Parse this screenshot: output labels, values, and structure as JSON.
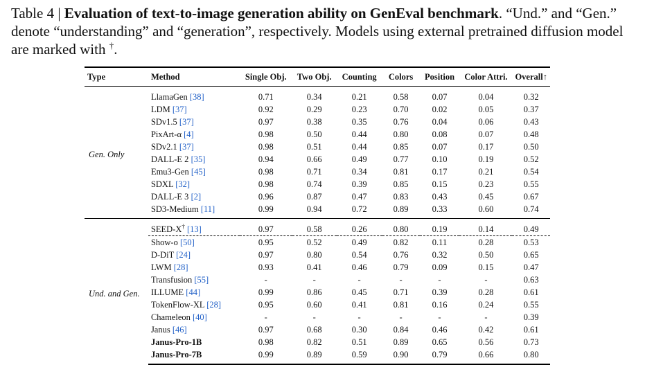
{
  "caption": {
    "label": "Table 4 | ",
    "title": "Evaluation of text-to-image generation ability on GenEval benchmark",
    "rest": ". “Und.” and “Gen.” denote “understanding” and “generation”, respectively. Models using external pretrained diffusion model are marked with ",
    "dagger": "†",
    "end": "."
  },
  "table": {
    "headers": {
      "type": "Type",
      "method": "Method",
      "single": "Single Obj.",
      "two": "Two Obj.",
      "counting": "Counting",
      "colors": "Colors",
      "position": "Position",
      "attri": "Color Attri.",
      "overall": "Overall↑"
    },
    "groups": [
      {
        "type": "Gen. Only",
        "rows": [
          {
            "method": "LlamaGen",
            "ref": "[38]",
            "v": [
              "0.71",
              "0.34",
              "0.21",
              "0.58",
              "0.07",
              "0.04",
              "0.32"
            ]
          },
          {
            "method": "LDM",
            "ref": "[37]",
            "v": [
              "0.92",
              "0.29",
              "0.23",
              "0.70",
              "0.02",
              "0.05",
              "0.37"
            ]
          },
          {
            "method": "SDv1.5",
            "ref": "[37]",
            "v": [
              "0.97",
              "0.38",
              "0.35",
              "0.76",
              "0.04",
              "0.06",
              "0.43"
            ]
          },
          {
            "method": "PixArt-α",
            "ref": "[4]",
            "v": [
              "0.98",
              "0.50",
              "0.44",
              "0.80",
              "0.08",
              "0.07",
              "0.48"
            ]
          },
          {
            "method": "SDv2.1",
            "ref": "[37]",
            "v": [
              "0.98",
              "0.51",
              "0.44",
              "0.85",
              "0.07",
              "0.17",
              "0.50"
            ]
          },
          {
            "method": "DALL-E 2",
            "ref": "[35]",
            "v": [
              "0.94",
              "0.66",
              "0.49",
              "0.77",
              "0.10",
              "0.19",
              "0.52"
            ]
          },
          {
            "method": "Emu3-Gen",
            "ref": "[45]",
            "v": [
              "0.98",
              "0.71",
              "0.34",
              "0.81",
              "0.17",
              "0.21",
              "0.54"
            ]
          },
          {
            "method": "SDXL",
            "ref": "[32]",
            "v": [
              "0.98",
              "0.74",
              "0.39",
              "0.85",
              "0.15",
              "0.23",
              "0.55"
            ]
          },
          {
            "method": "DALL-E 3",
            "ref": "[2]",
            "v": [
              "0.96",
              "0.87",
              "0.47",
              "0.83",
              "0.43",
              "0.45",
              "0.67"
            ]
          },
          {
            "method": "SD3-Medium",
            "ref": "[11]",
            "v": [
              "0.99",
              "0.94",
              "0.72",
              "0.89",
              "0.33",
              "0.60",
              "0.74"
            ]
          }
        ]
      },
      {
        "type": "Und. and Gen.",
        "rows": [
          {
            "method": "SEED-X",
            "dagger": "†",
            "ref": "[13]",
            "v": [
              "0.97",
              "0.58",
              "0.26",
              "0.80",
              "0.19",
              "0.14",
              "0.49"
            ]
          },
          {
            "method": "Show-o",
            "ref": "[50]",
            "v": [
              "0.95",
              "0.52",
              "0.49",
              "0.82",
              "0.11",
              "0.28",
              "0.53"
            ]
          },
          {
            "method": "D-DiT",
            "ref": "[24]",
            "v": [
              "0.97",
              "0.80",
              "0.54",
              "0.76",
              "0.32",
              "0.50",
              "0.65"
            ]
          },
          {
            "method": "LWM",
            "ref": "[28]",
            "v": [
              "0.93",
              "0.41",
              "0.46",
              "0.79",
              "0.09",
              "0.15",
              "0.47"
            ]
          },
          {
            "method": "Transfusion",
            "ref": "[55]",
            "v": [
              "-",
              "-",
              "-",
              "-",
              "-",
              "-",
              "0.63"
            ]
          },
          {
            "method": "ILLUME",
            "ref": "[44]",
            "v": [
              "0.99",
              "0.86",
              "0.45",
              "0.71",
              "0.39",
              "0.28",
              "0.61"
            ]
          },
          {
            "method": "TokenFlow-XL",
            "ref": "[28]",
            "v": [
              "0.95",
              "0.60",
              "0.41",
              "0.81",
              "0.16",
              "0.24",
              "0.55"
            ]
          },
          {
            "method": "Chameleon",
            "ref": "[40]",
            "v": [
              "-",
              "-",
              "-",
              "-",
              "-",
              "-",
              "0.39"
            ]
          },
          {
            "method": "Janus",
            "ref": "[46]",
            "v": [
              "0.97",
              "0.68",
              "0.30",
              "0.84",
              "0.46",
              "0.42",
              "0.61"
            ]
          },
          {
            "method": "Janus-Pro-1B",
            "bold": true,
            "v": [
              "0.98",
              "0.82",
              "0.51",
              "0.89",
              "0.65",
              "0.56",
              "0.73"
            ]
          },
          {
            "method": "Janus-Pro-7B",
            "bold": true,
            "v": [
              "0.99",
              "0.89",
              "0.59",
              "0.90",
              "0.79",
              "0.66",
              "0.80"
            ]
          }
        ]
      }
    ]
  },
  "colors": {
    "ref": "#1f5fc7"
  }
}
